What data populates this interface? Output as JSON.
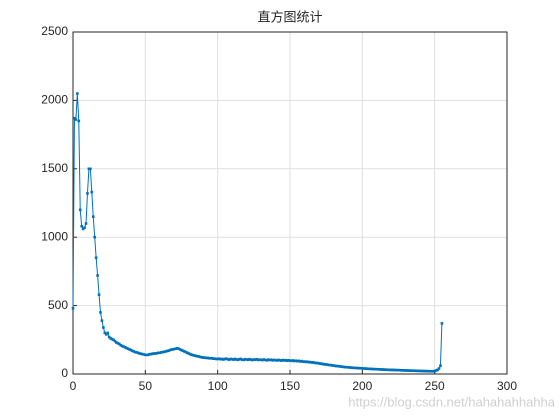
{
  "chart_data": {
    "type": "line",
    "title": "直方图统计",
    "watermark": "https://blog.csdn.net/hahahahhahha",
    "color": "#0072bd",
    "grid": true,
    "xlim": [
      0,
      300
    ],
    "xticks": [
      0,
      50,
      100,
      150,
      200,
      250,
      300
    ],
    "ylim": [
      0,
      2500
    ],
    "yticks": [
      0,
      500,
      1000,
      1500,
      2000,
      2500
    ],
    "x": [
      0,
      1,
      2,
      3,
      4,
      5,
      6,
      7,
      8,
      9,
      10,
      11,
      12,
      13,
      14,
      15,
      16,
      17,
      18,
      19,
      20,
      21,
      22,
      23,
      24,
      25,
      26,
      27,
      28,
      29,
      30,
      31,
      32,
      33,
      34,
      35,
      36,
      37,
      38,
      39,
      40,
      41,
      42,
      43,
      44,
      45,
      46,
      47,
      48,
      49,
      50,
      51,
      52,
      53,
      54,
      55,
      56,
      57,
      58,
      59,
      60,
      61,
      62,
      63,
      64,
      65,
      66,
      67,
      68,
      69,
      70,
      71,
      72,
      73,
      74,
      75,
      76,
      77,
      78,
      79,
      80,
      81,
      82,
      83,
      84,
      85,
      86,
      87,
      88,
      89,
      90,
      91,
      92,
      93,
      94,
      95,
      96,
      97,
      98,
      99,
      100,
      101,
      102,
      103,
      104,
      105,
      106,
      107,
      108,
      109,
      110,
      111,
      112,
      113,
      114,
      115,
      116,
      117,
      118,
      119,
      120,
      121,
      122,
      123,
      124,
      125,
      126,
      127,
      128,
      129,
      130,
      131,
      132,
      133,
      134,
      135,
      136,
      137,
      138,
      139,
      140,
      141,
      142,
      143,
      144,
      145,
      146,
      147,
      148,
      149,
      150,
      151,
      152,
      153,
      154,
      155,
      156,
      157,
      158,
      159,
      160,
      161,
      162,
      163,
      164,
      165,
      166,
      167,
      168,
      169,
      170,
      171,
      172,
      173,
      174,
      175,
      176,
      177,
      178,
      179,
      180,
      181,
      182,
      183,
      184,
      185,
      186,
      187,
      188,
      189,
      190,
      191,
      192,
      193,
      194,
      195,
      196,
      197,
      198,
      199,
      200,
      201,
      202,
      203,
      204,
      205,
      206,
      207,
      208,
      209,
      210,
      211,
      212,
      213,
      214,
      215,
      216,
      217,
      218,
      219,
      220,
      221,
      222,
      223,
      224,
      225,
      226,
      227,
      228,
      229,
      230,
      231,
      232,
      233,
      234,
      235,
      236,
      237,
      238,
      239,
      240,
      241,
      242,
      243,
      244,
      245,
      246,
      247,
      248,
      249,
      250,
      251,
      252,
      253,
      254,
      255
    ],
    "values": [
      480,
      1870,
      1860,
      2050,
      1850,
      1200,
      1080,
      1060,
      1070,
      1100,
      1320,
      1500,
      1500,
      1330,
      1150,
      1000,
      850,
      720,
      580,
      450,
      390,
      340,
      300,
      290,
      300,
      270,
      260,
      255,
      250,
      240,
      230,
      225,
      220,
      210,
      205,
      200,
      195,
      190,
      185,
      180,
      175,
      170,
      165,
      160,
      158,
      155,
      150,
      148,
      145,
      143,
      140,
      140,
      140,
      145,
      145,
      148,
      150,
      150,
      152,
      155,
      155,
      158,
      160,
      162,
      165,
      168,
      170,
      175,
      178,
      180,
      182,
      185,
      188,
      185,
      180,
      175,
      170,
      165,
      160,
      155,
      150,
      145,
      140,
      138,
      135,
      132,
      130,
      128,
      125,
      122,
      120,
      120,
      118,
      118,
      115,
      115,
      115,
      112,
      112,
      110,
      110,
      112,
      108,
      110,
      106,
      110,
      112,
      108,
      105,
      110,
      108,
      105,
      110,
      106,
      104,
      108,
      110,
      105,
      103,
      108,
      106,
      104,
      108,
      105,
      102,
      106,
      104,
      108,
      103,
      105,
      104,
      102,
      106,
      103,
      100,
      105,
      102,
      104,
      100,
      103,
      101,
      99,
      103,
      100,
      98,
      102,
      99,
      101,
      97,
      100,
      98,
      96,
      99,
      95,
      97,
      94,
      96,
      92,
      94,
      90,
      91,
      88,
      90,
      86,
      87,
      84,
      85,
      82,
      80,
      80,
      78,
      76,
      75,
      72,
      70,
      70,
      68,
      66,
      65,
      63,
      62,
      60,
      58,
      58,
      56,
      55,
      53,
      52,
      50,
      50,
      49,
      48,
      47,
      46,
      45,
      45,
      44,
      43,
      42,
      42,
      41,
      40,
      40,
      39,
      38,
      38,
      37,
      36,
      36,
      35,
      35,
      34,
      34,
      33,
      33,
      32,
      32,
      31,
      31,
      30,
      30,
      30,
      29,
      29,
      28,
      28,
      28,
      27,
      27,
      26,
      26,
      26,
      25,
      25,
      24,
      24,
      24,
      23,
      23,
      23,
      22,
      22,
      22,
      21,
      21,
      21,
      20,
      20,
      20,
      20,
      22,
      25,
      30,
      40,
      60,
      370
    ]
  }
}
